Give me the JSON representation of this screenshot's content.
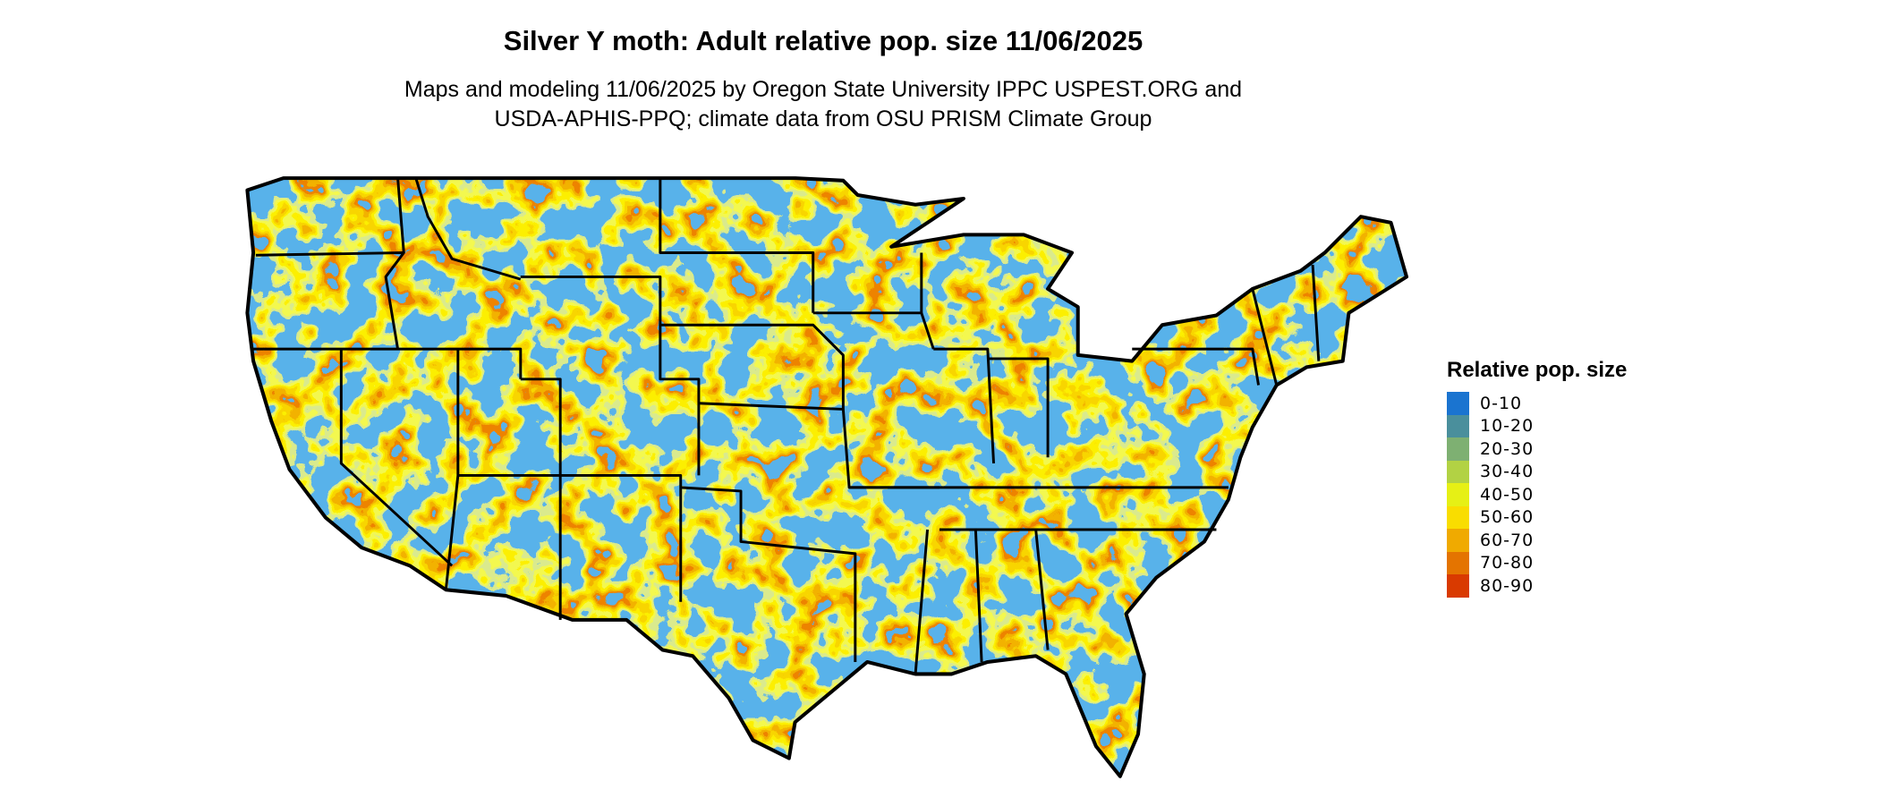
{
  "title": "Silver Y moth: Adult relative pop. size 11/06/2025",
  "subtitle_line1": "Maps and modeling 11/06/2025 by Oregon State University IPPC USPEST.ORG and",
  "subtitle_line2": "USDA-APHIS-PPQ; climate data from OSU PRISM Climate Group",
  "legend": {
    "title": "Relative pop. size",
    "items": [
      {
        "label": "0-10",
        "color": "#1a74d0"
      },
      {
        "label": "10-20",
        "color": "#4a8f9c"
      },
      {
        "label": "20-30",
        "color": "#7eb072"
      },
      {
        "label": "30-40",
        "color": "#b2d244"
      },
      {
        "label": "40-50",
        "color": "#e6f015"
      },
      {
        "label": "50-60",
        "color": "#f9dd00"
      },
      {
        "label": "60-70",
        "color": "#f0aa00"
      },
      {
        "label": "70-80",
        "color": "#e47400"
      },
      {
        "label": "80-90",
        "color": "#d93a00"
      }
    ]
  },
  "map": {
    "region": "Contiguous United States",
    "border_color": "#000000"
  }
}
